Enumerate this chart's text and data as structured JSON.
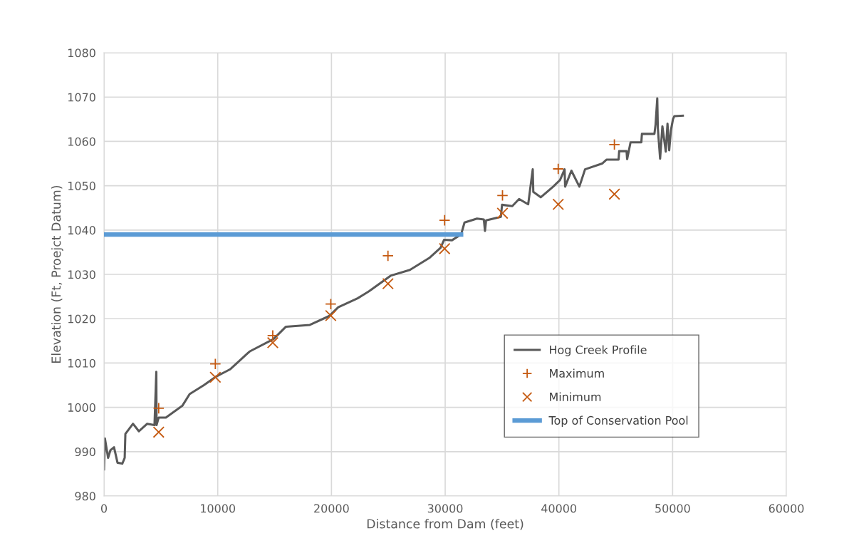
{
  "chart_data": {
    "type": "line",
    "xlabel": "Distance from Dam (feet)",
    "ylabel": "Elevation (Ft, Proejct Datum)",
    "xlim": [
      0,
      60000
    ],
    "xticks": [
      0,
      10000,
      20000,
      30000,
      40000,
      50000,
      60000
    ],
    "ylim": [
      980,
      1080
    ],
    "yticks": [
      980,
      990,
      1000,
      1010,
      1020,
      1030,
      1040,
      1050,
      1060,
      1070,
      1080
    ],
    "grid": true,
    "legend": "bottom right",
    "series": [
      {
        "name": "Hog Creek Profile",
        "color": "#595959",
        "marker": "none",
        "line_style": "solid",
        "x": [
          0,
          80,
          360,
          560,
          880,
          1190,
          1610,
          1820,
          1880,
          2550,
          3070,
          3800,
          4440,
          4600,
          4620,
          4810,
          5440,
          6900,
          7530,
          8780,
          9830,
          10880,
          11100,
          12550,
          12800,
          14900,
          16000,
          18100,
          19800,
          20600,
          22300,
          23300,
          25200,
          26900,
          28600,
          29600,
          29900,
          30600,
          31400,
          31700,
          32800,
          33400,
          33500,
          33600,
          34900,
          35000,
          35900,
          36500,
          37300,
          37700,
          37750,
          38400,
          39500,
          40100,
          40500,
          40550,
          41100,
          41800,
          42300,
          43800,
          44200,
          45250,
          45300,
          45950,
          46000,
          46300,
          47250,
          47300,
          48400,
          48500,
          48650,
          48700,
          48900,
          49100,
          49400,
          49550,
          49700,
          49850,
          50030,
          50150,
          50900
        ],
        "values": [
          986,
          993,
          988.6,
          990.3,
          991,
          987.5,
          987.3,
          988.6,
          994,
          996.3,
          994.6,
          996.3,
          996,
          1008,
          996,
          997.7,
          997.7,
          1000.4,
          1003,
          1005,
          1006.9,
          1008.3,
          1008.6,
          1012,
          1012.6,
          1015.4,
          1018.2,
          1018.6,
          1020.6,
          1022.6,
          1024.6,
          1026.2,
          1029.7,
          1031,
          1033.7,
          1036,
          1037.8,
          1037.7,
          1039,
          1041.7,
          1042.6,
          1042.4,
          1039.8,
          1042.2,
          1043,
          1045.7,
          1045.4,
          1047,
          1045.8,
          1053.7,
          1048.6,
          1047.4,
          1049.8,
          1051.3,
          1053.7,
          1049.8,
          1053.4,
          1049.8,
          1053.7,
          1055,
          1055.9,
          1055.9,
          1057.8,
          1057.8,
          1056,
          1059.8,
          1059.8,
          1061.7,
          1061.7,
          1063.8,
          1069.7,
          1063,
          1056.1,
          1063.4,
          1057.7,
          1064,
          1058,
          1062.5,
          1065,
          1065.7,
          1065.8
        ]
      },
      {
        "name": "Maximum",
        "type": "scatter",
        "color": "#c55a11",
        "marker": "plus",
        "x": [
          4810,
          9790,
          14840,
          19940,
          24970,
          29950,
          35040,
          39940,
          44880
        ],
        "values": [
          999.8,
          1009.8,
          1016.2,
          1023.3,
          1034.2,
          1042.2,
          1047.8,
          1053.8,
          1059.3
        ]
      },
      {
        "name": "Minimum",
        "type": "scatter",
        "color": "#c55a11",
        "marker": "cross",
        "x": [
          4810,
          9790,
          14840,
          19940,
          24970,
          29950,
          35040,
          39940,
          44880
        ],
        "values": [
          994.4,
          1006.8,
          1014.6,
          1020.7,
          1027.9,
          1035.8,
          1043.8,
          1045.8,
          1048.1
        ]
      },
      {
        "name": "Top of Conservation Pool",
        "color": "#5b9bd5",
        "marker": "none",
        "line_style": "solid",
        "x": [
          0,
          31400
        ],
        "values": [
          1039,
          1039
        ]
      }
    ]
  }
}
